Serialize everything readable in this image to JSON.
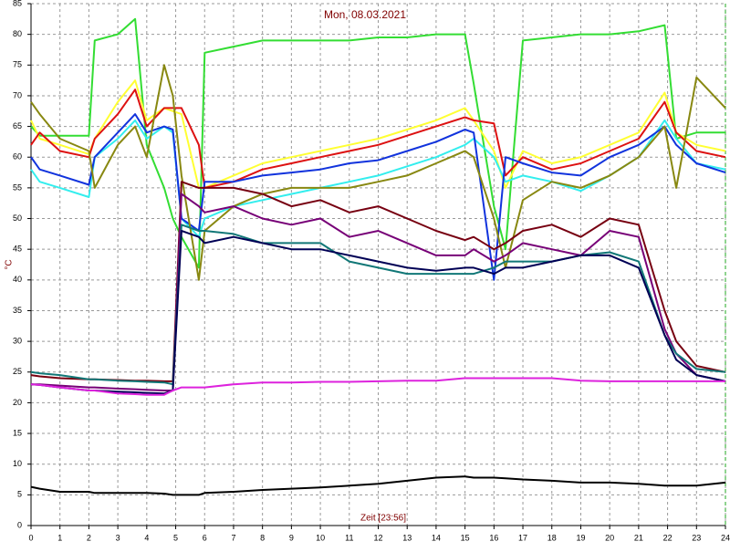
{
  "chart_data": {
    "type": "line",
    "title": "Mon, 08.03.2021",
    "x_label": "Zeit [23:56]",
    "y_label": "°C",
    "x": [
      0,
      0.3,
      1,
      2,
      2.2,
      3,
      3.6,
      4,
      4.6,
      4.9,
      5.2,
      5.8,
      6,
      7,
      8,
      9,
      10,
      11,
      12,
      13,
      14,
      15,
      15.3,
      16,
      16.4,
      17,
      18,
      19,
      20,
      21,
      21.9,
      22.3,
      23,
      24
    ],
    "xlim": [
      0,
      24
    ],
    "xticks": [
      0,
      1,
      2,
      3,
      4,
      5,
      6,
      7,
      8,
      9,
      10,
      11,
      12,
      13,
      14,
      15,
      16,
      17,
      18,
      19,
      20,
      21,
      22,
      23,
      24
    ],
    "ylim": [
      0,
      85
    ],
    "yticks": [
      0,
      5,
      10,
      15,
      20,
      25,
      30,
      35,
      40,
      45,
      50,
      55,
      60,
      65,
      70,
      75,
      80,
      85
    ],
    "grid": true,
    "series": [
      {
        "color": "#33dd33",
        "values": [
          65,
          63.5,
          63.5,
          63.5,
          79,
          80,
          82.5,
          62,
          55,
          50,
          47,
          42,
          77,
          78,
          79,
          79,
          79,
          79,
          79.5,
          79.5,
          80,
          80,
          72,
          52,
          45,
          79,
          79.5,
          80,
          80,
          80.5,
          81.5,
          63,
          64,
          64
        ]
      },
      {
        "color": "#ffff33",
        "values": [
          66,
          63,
          62,
          60.5,
          63,
          69,
          72.5,
          66,
          68,
          67.5,
          67,
          55,
          55,
          57,
          59,
          60,
          61,
          62,
          63,
          64.5,
          66,
          68,
          66,
          61,
          55,
          61,
          59,
          60,
          62,
          64,
          70.5,
          64,
          62,
          61
        ]
      },
      {
        "color": "#dd1111",
        "values": [
          62,
          64,
          61,
          60,
          63,
          67,
          71,
          65,
          68,
          68,
          68,
          62,
          55,
          56,
          58,
          59,
          60,
          61,
          62,
          63.5,
          65,
          66.5,
          66,
          65.5,
          57,
          60,
          58,
          59,
          61,
          63,
          69,
          64,
          61,
          60
        ]
      },
      {
        "color": "#33eeee",
        "values": [
          58,
          56,
          55,
          53.5,
          60,
          63,
          66,
          63,
          65,
          64,
          50,
          47,
          50,
          52,
          53,
          54,
          55,
          56,
          57,
          58.5,
          60,
          62,
          63,
          60,
          56,
          57,
          56,
          54.5,
          57,
          60,
          66,
          63,
          59,
          58
        ]
      },
      {
        "color": "#1133dd",
        "values": [
          60,
          58,
          57,
          55.5,
          60,
          64,
          67,
          64,
          65,
          64.5,
          50,
          48,
          56,
          56,
          57,
          57.5,
          58,
          59,
          59.5,
          61,
          62.5,
          64.5,
          64,
          40,
          60,
          59,
          57.5,
          57,
          60,
          62,
          65,
          62,
          59,
          57.5
        ]
      },
      {
        "color": "#888811",
        "values": [
          69,
          67,
          63,
          61,
          55,
          62,
          65,
          60,
          75,
          70,
          57,
          40,
          48,
          52,
          54,
          55,
          55,
          55,
          56,
          57,
          59,
          61,
          60,
          50,
          42,
          53,
          56,
          55,
          57,
          60,
          65,
          55,
          73,
          68
        ]
      },
      {
        "color": "#770011",
        "values": [
          24.5,
          24.3,
          24,
          23.8,
          23.8,
          23.7,
          23.6,
          23.6,
          23.5,
          23.5,
          56,
          55,
          55,
          55,
          54,
          52,
          53,
          51,
          52,
          50,
          48,
          46.5,
          47,
          45,
          46,
          48,
          49,
          47,
          50,
          49,
          35,
          30,
          26,
          25
        ]
      },
      {
        "color": "#770077",
        "values": [
          23,
          23,
          22.8,
          22.5,
          22.5,
          22.3,
          22.2,
          22.1,
          22,
          22,
          54,
          52,
          51,
          52,
          50,
          49,
          50,
          47,
          48,
          46,
          44,
          44,
          45,
          43,
          44,
          46,
          45,
          44,
          48,
          47,
          32,
          28,
          24.5,
          23.5
        ]
      },
      {
        "color": "#117777",
        "values": [
          25,
          24.8,
          24.5,
          23.8,
          23.8,
          23.6,
          23.5,
          23.4,
          23.3,
          23,
          49,
          48,
          48,
          47.5,
          46,
          46,
          46,
          43,
          42,
          41,
          41,
          41,
          41,
          42,
          43,
          43,
          43,
          44,
          44.5,
          43,
          31,
          28,
          25.5,
          25
        ]
      },
      {
        "color": "#000055",
        "values": [
          23,
          22.9,
          22.5,
          22,
          22,
          21.8,
          21.7,
          21.6,
          21.5,
          22,
          48,
          47,
          46,
          47,
          46,
          45,
          45,
          44,
          43,
          42,
          41.5,
          42,
          42,
          41,
          42,
          42,
          43,
          44,
          44,
          42,
          31,
          27,
          24.5,
          23.5
        ]
      },
      {
        "color": "#dd22dd",
        "values": [
          23,
          22.9,
          22.5,
          22,
          22,
          21.5,
          21.4,
          21.3,
          21.3,
          22,
          22.5,
          22.5,
          22.5,
          23,
          23.3,
          23.3,
          23.4,
          23.4,
          23.5,
          23.6,
          23.6,
          24,
          24,
          24,
          24,
          24,
          24,
          23.6,
          23.5,
          23.5,
          23.5,
          23.5,
          23.5,
          23.5
        ]
      },
      {
        "color": "#000000",
        "values": [
          6.3,
          6,
          5.5,
          5.5,
          5.3,
          5.3,
          5.3,
          5.3,
          5.2,
          5,
          5,
          5,
          5.3,
          5.5,
          5.8,
          6,
          6.2,
          6.5,
          6.8,
          7.3,
          7.8,
          8,
          7.8,
          7.8,
          7.7,
          7.5,
          7.3,
          7,
          7,
          6.8,
          6.5,
          6.5,
          6.5,
          7
        ]
      }
    ]
  }
}
